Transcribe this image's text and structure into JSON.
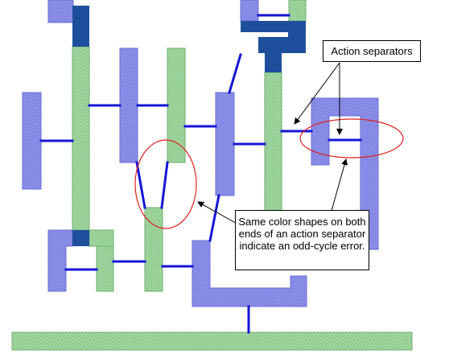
{
  "diagram": {
    "callouts": {
      "action_separators": "Action separators",
      "odd_cycle_note": "Same color shapes on both ends of an action separator indicate an odd-cycle error."
    },
    "colors": {
      "blue_fill": "#8a8ee6",
      "blue_border": "#6b6fd6",
      "green_fill": "#9fd49f",
      "green_border": "#6fb26f",
      "dark_blue": "#1e4f9c",
      "separator": "#1515d8",
      "highlight_ellipse": "#e02020",
      "arrow": "#000000"
    }
  }
}
